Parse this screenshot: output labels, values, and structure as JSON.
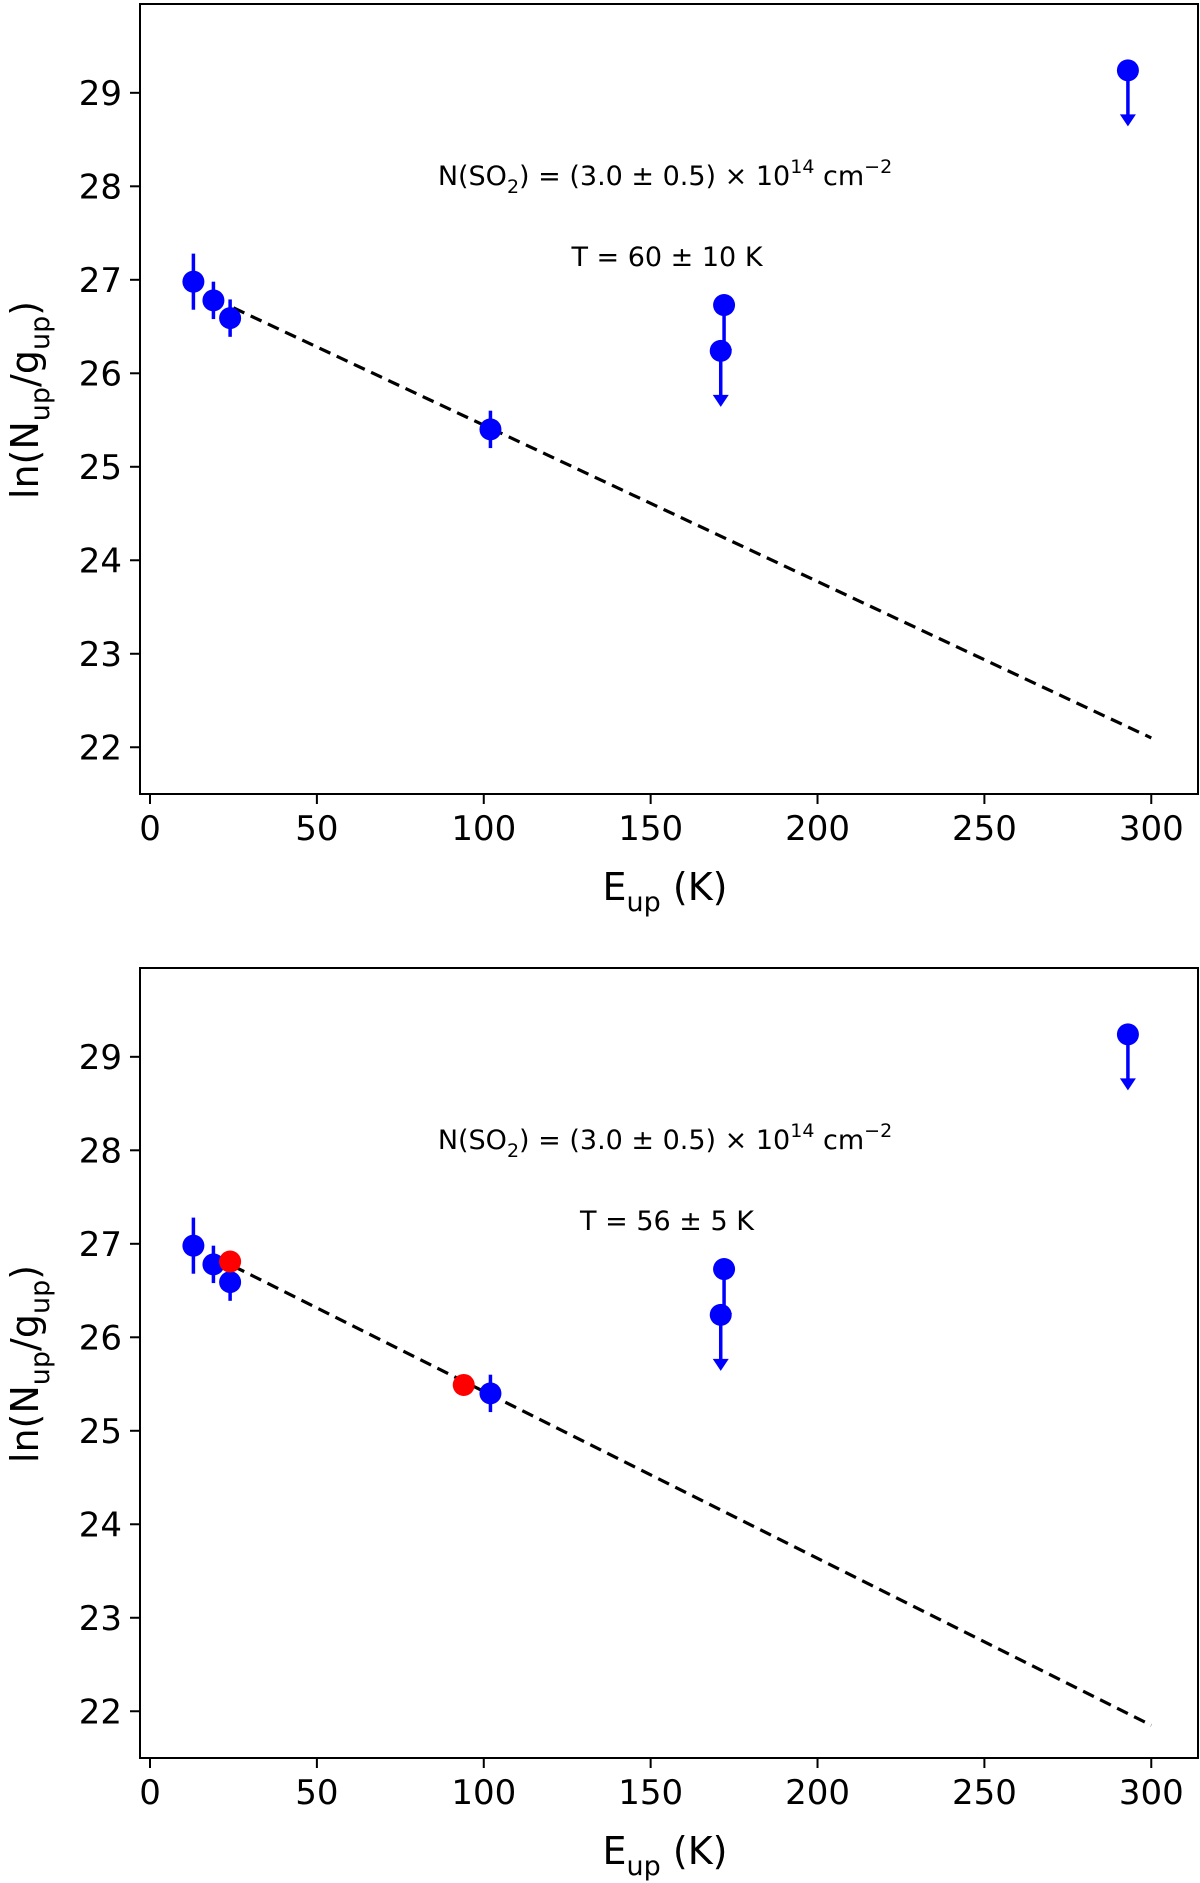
{
  "chart_data": [
    {
      "type": "scatter",
      "panel": "top",
      "x_ticks": [
        "0",
        "50",
        "100",
        "150",
        "200",
        "250",
        "300"
      ],
      "y_ticks": [
        "22",
        "23",
        "24",
        "25",
        "26",
        "27",
        "28",
        "29"
      ],
      "xlim": [
        -3,
        314
      ],
      "ylim": [
        21.5,
        29.95
      ],
      "xlabel": {
        "main": "E",
        "sub": "up",
        "tail": " (K)"
      },
      "ylabel": {
        "pre": "ln(N",
        "sub1": "up",
        "mid": "/g",
        "sub2": "up",
        "post": ")"
      },
      "annotation_n": {
        "pre": "N(SO",
        "sub": "2",
        "mid": ") = (3.0 ± 0.5) × 10",
        "sup": "14",
        "post": " cm",
        "sup2": "−2"
      },
      "annotation_t": "T = 60 ± 10 K",
      "fit_line": {
        "x": [
          25,
          300
        ],
        "y": [
          26.7,
          22.1
        ],
        "color": "#000000",
        "style": "dashed"
      },
      "points": [
        {
          "x": 13,
          "y": 26.98,
          "err": 0.3,
          "color": "#0000ff"
        },
        {
          "x": 19,
          "y": 26.78,
          "err": 0.2,
          "color": "#0000ff"
        },
        {
          "x": 24,
          "y": 26.59,
          "err": 0.2,
          "color": "#0000ff"
        },
        {
          "x": 102,
          "y": 25.4,
          "err": 0.2,
          "color": "#0000ff"
        }
      ],
      "upper_limits": [
        {
          "x": 172,
          "y": 26.73,
          "color": "#0000ff"
        },
        {
          "x": 171,
          "y": 26.24,
          "color": "#0000ff"
        },
        {
          "x": 293,
          "y": 29.24,
          "color": "#0000ff"
        }
      ]
    },
    {
      "type": "scatter",
      "panel": "bottom",
      "x_ticks": [
        "0",
        "50",
        "100",
        "150",
        "200",
        "250",
        "300"
      ],
      "y_ticks": [
        "22",
        "23",
        "24",
        "25",
        "26",
        "27",
        "28",
        "29"
      ],
      "xlim": [
        -3,
        314
      ],
      "ylim": [
        21.5,
        29.95
      ],
      "xlabel": {
        "main": "E",
        "sub": "up",
        "tail": " (K)"
      },
      "ylabel": {
        "pre": "ln(N",
        "sub1": "up",
        "mid": "/g",
        "sub2": "up",
        "post": ")"
      },
      "annotation_n": {
        "pre": "N(SO",
        "sub": "2",
        "mid": ") = (3.0 ± 0.5) × 10",
        "sup": "14",
        "post": " cm",
        "sup2": "−2"
      },
      "annotation_t": "T = 56 ± 5 K",
      "fit_line": {
        "x": [
          25,
          300
        ],
        "y": [
          26.76,
          21.85
        ],
        "color": "#000000",
        "style": "dashed"
      },
      "points": [
        {
          "x": 13,
          "y": 26.98,
          "err": 0.3,
          "color": "#0000ff"
        },
        {
          "x": 19,
          "y": 26.78,
          "err": 0.2,
          "color": "#0000ff"
        },
        {
          "x": 24,
          "y": 26.59,
          "err": 0.2,
          "color": "#0000ff"
        },
        {
          "x": 102,
          "y": 25.4,
          "err": 0.2,
          "color": "#0000ff"
        },
        {
          "x": 24,
          "y": 26.81,
          "err": 0,
          "color": "#ff0000"
        },
        {
          "x": 94,
          "y": 25.49,
          "err": 0,
          "color": "#ff0000"
        }
      ],
      "upper_limits": [
        {
          "x": 172,
          "y": 26.73,
          "color": "#0000ff"
        },
        {
          "x": 171,
          "y": 26.24,
          "color": "#0000ff"
        },
        {
          "x": 293,
          "y": 29.24,
          "color": "#0000ff"
        }
      ]
    }
  ]
}
